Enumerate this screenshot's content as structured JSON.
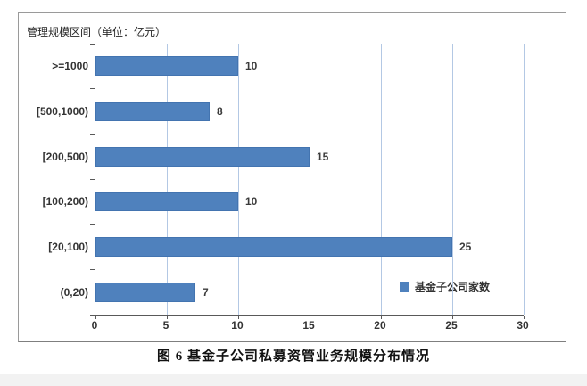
{
  "page": {
    "caption": "图 6  基金子公司私募资管业务规模分布情况"
  },
  "chart_data": {
    "type": "bar",
    "orientation": "horizontal",
    "title": "管理规模区间（单位：亿元）",
    "categories": [
      ">=1000",
      "[500,1000)",
      "[200,500)",
      "[100,200)",
      "[20,100)",
      "(0,20)"
    ],
    "values": [
      10,
      8,
      15,
      10,
      25,
      7
    ],
    "series": [
      {
        "name": "基金子公司家数",
        "values": [
          10,
          8,
          15,
          10,
          25,
          7
        ]
      }
    ],
    "legend": {
      "label": "基金子公司家数",
      "position": "inside-bottom-right"
    },
    "x_ticks": [
      0,
      5,
      10,
      15,
      20,
      25,
      30
    ],
    "xlim": [
      0,
      30
    ],
    "xlabel": "",
    "ylabel": "",
    "grid": "vertical-gridlines-on",
    "data_labels": "shown-at-bar-end",
    "colors": {
      "bar_fill": "#4f81bd",
      "bar_border": "#4374b0",
      "gridline": "#b3c8e4",
      "axis": "#595959",
      "label_text": "#333333"
    }
  }
}
